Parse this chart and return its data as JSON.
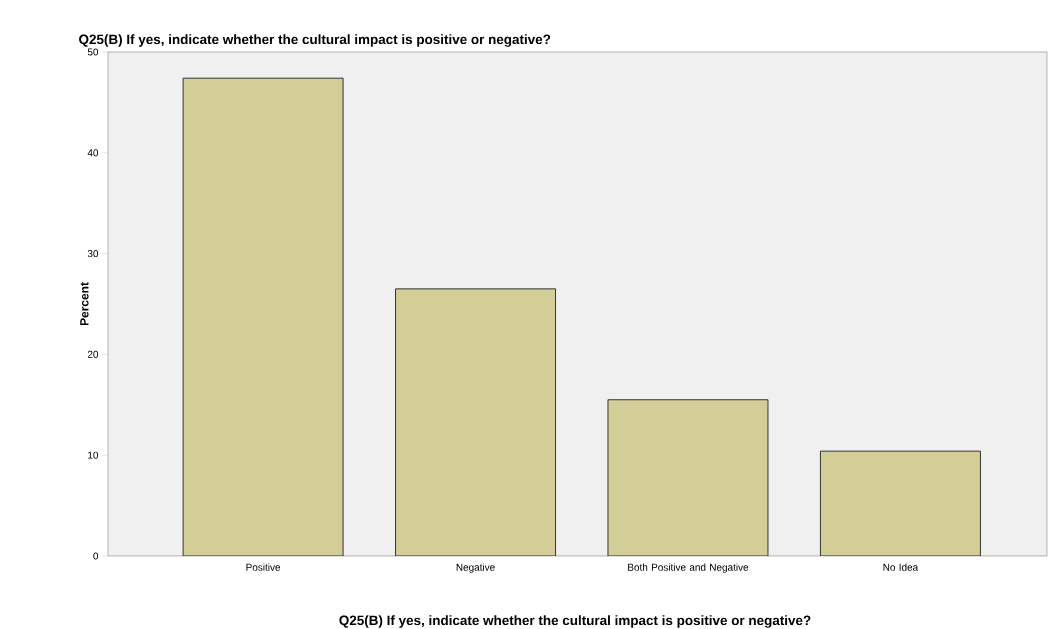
{
  "chart_data": {
    "type": "bar",
    "title": "Q25(B) If yes, indicate whether the cultural impact is positive or negative?",
    "xlabel": "Q25(B) If yes, indicate whether the cultural impact is positive or negative?",
    "ylabel": "Percent",
    "categories": [
      "Positive",
      "Negative",
      "Both Positive and Negative",
      "No Idea"
    ],
    "values": [
      47.4,
      26.5,
      15.5,
      10.4
    ],
    "color": "#d3ce97",
    "ylim": [
      0,
      50
    ],
    "yticks": [
      0,
      10,
      20,
      30,
      40,
      50
    ],
    "grid": false
  }
}
